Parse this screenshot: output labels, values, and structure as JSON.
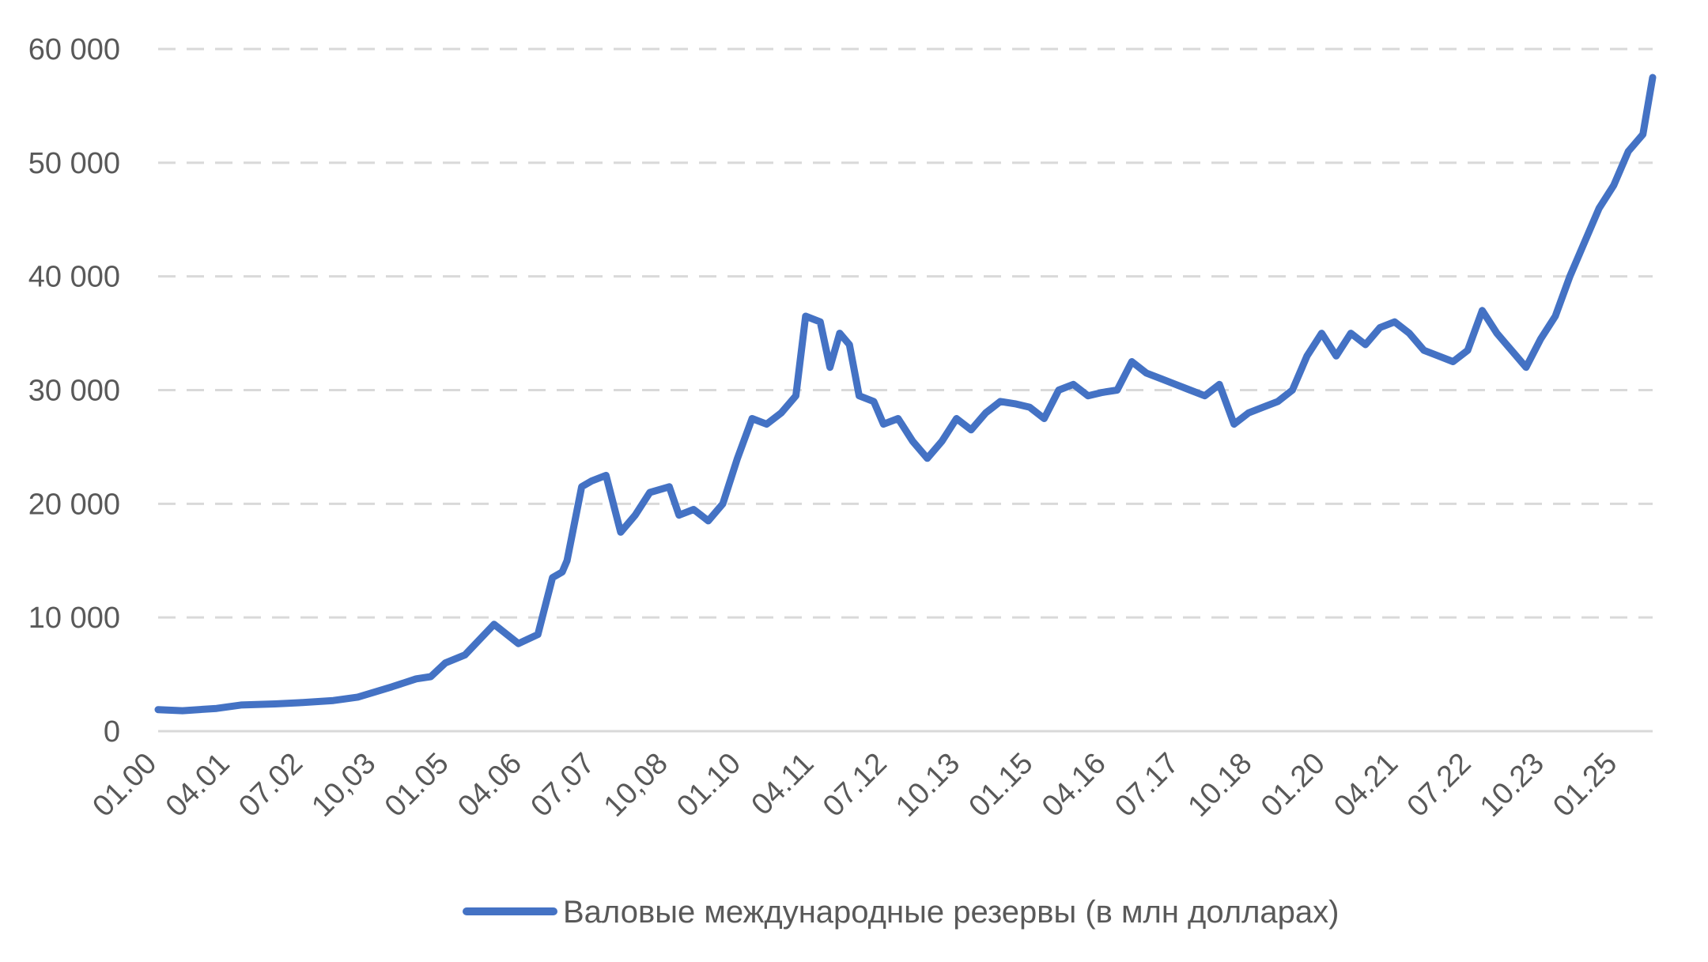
{
  "chart_data": {
    "type": "line",
    "title": "",
    "xlabel": "",
    "ylabel": "",
    "ylim": [
      0,
      60000
    ],
    "y_ticks": [
      0,
      10000,
      20000,
      30000,
      40000,
      50000,
      60000
    ],
    "y_tick_labels": [
      "0",
      "10 000",
      "20 000",
      "30 000",
      "40 000",
      "50 000",
      "60 000"
    ],
    "x_tick_labels": [
      "01.00",
      "04.01",
      "07.02",
      "10,03",
      "01.05",
      "04.06",
      "07.07",
      "10,08",
      "01.10",
      "04.11",
      "07.12",
      "10.13",
      "01.15",
      "04.16",
      "07.17",
      "10.18",
      "01.20",
      "04.21",
      "07.22",
      "10.23",
      "01.25"
    ],
    "x_tick_dates": [
      "2000-01",
      "2001-04",
      "2002-07",
      "2003-10",
      "2005-01",
      "2006-04",
      "2007-07",
      "2008-10",
      "2010-01",
      "2011-04",
      "2012-07",
      "2013-10",
      "2015-01",
      "2016-04",
      "2017-07",
      "2018-10",
      "2020-01",
      "2021-04",
      "2022-07",
      "2023-10",
      "2025-01"
    ],
    "grid": "horizontal dashed",
    "legend_position": "bottom",
    "colors": {
      "line": "#4472C4",
      "grid": "#D9D9D9",
      "axis": "#D9D9D9",
      "text": "#595959"
    },
    "series": [
      {
        "name": "Валовые международные резервы (в млн долларах)",
        "x": [
          "2000-01",
          "2000-06",
          "2001-01",
          "2001-06",
          "2002-01",
          "2002-06",
          "2003-01",
          "2003-06",
          "2004-01",
          "2004-06",
          "2004-09",
          "2004-12",
          "2005-04",
          "2005-10",
          "2006-03",
          "2006-07",
          "2006-10",
          "2006-12",
          "2007-01",
          "2007-04",
          "2007-06",
          "2007-09",
          "2007-12",
          "2008-03",
          "2008-06",
          "2008-10",
          "2008-12",
          "2009-03",
          "2009-06",
          "2009-09",
          "2009-12",
          "2010-03",
          "2010-06",
          "2010-09",
          "2010-12",
          "2011-02",
          "2011-05",
          "2011-07",
          "2011-09",
          "2011-11",
          "2012-01",
          "2012-04",
          "2012-06",
          "2012-09",
          "2012-12",
          "2013-03",
          "2013-06",
          "2013-09",
          "2013-12",
          "2014-03",
          "2014-06",
          "2014-09",
          "2014-12",
          "2015-03",
          "2015-06",
          "2015-09",
          "2015-12",
          "2016-03",
          "2016-06",
          "2016-09",
          "2016-12",
          "2017-03",
          "2017-06",
          "2017-09",
          "2017-12",
          "2018-03",
          "2018-06",
          "2018-09",
          "2018-12",
          "2019-03",
          "2019-06",
          "2019-09",
          "2019-12",
          "2020-03",
          "2020-06",
          "2020-09",
          "2020-12",
          "2021-03",
          "2021-06",
          "2021-09",
          "2021-12",
          "2022-03",
          "2022-06",
          "2022-09",
          "2022-12",
          "2023-03",
          "2023-06",
          "2023-09",
          "2023-12",
          "2024-03",
          "2024-06",
          "2024-09",
          "2024-12",
          "2025-03",
          "2025-06",
          "2025-08"
        ],
        "values": [
          1900,
          1800,
          2000,
          2300,
          2400,
          2500,
          2700,
          3000,
          3900,
          4600,
          4800,
          6000,
          6700,
          9400,
          7700,
          8500,
          13500,
          14000,
          15000,
          21500,
          22000,
          22500,
          17500,
          19000,
          21000,
          21500,
          19000,
          19500,
          18500,
          20000,
          24000,
          27500,
          27000,
          28000,
          29500,
          36500,
          36000,
          32000,
          35000,
          34000,
          29500,
          29000,
          27000,
          27500,
          25500,
          24000,
          25500,
          27500,
          26500,
          28000,
          29000,
          28800,
          28500,
          27500,
          30000,
          30500,
          29500,
          29800,
          30000,
          32500,
          31500,
          31000,
          30500,
          30000,
          29500,
          30500,
          27000,
          28000,
          28500,
          29000,
          30000,
          33000,
          35000,
          33000,
          35000,
          34000,
          35500,
          36000,
          35000,
          33500,
          33000,
          32500,
          33500,
          37000,
          35000,
          33500,
          32000,
          34500,
          36500,
          40000,
          43000,
          46000,
          48000,
          51000,
          52500,
          57500
        ]
      }
    ]
  }
}
